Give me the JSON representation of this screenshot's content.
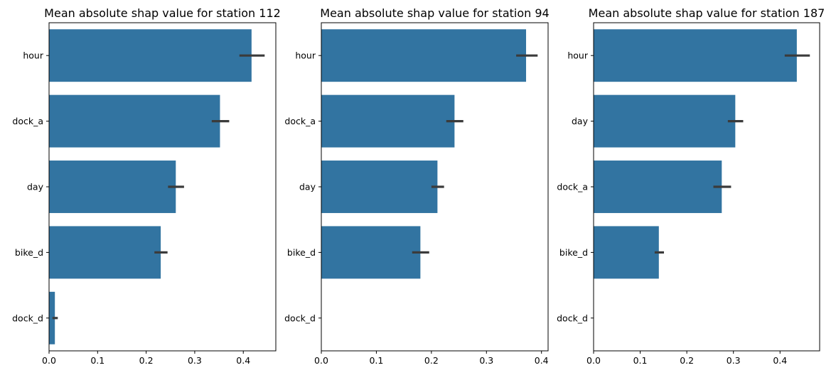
{
  "figure": {
    "background": "#ffffff",
    "bar_color": "#3274a1",
    "error_color": "#3b3b3b"
  },
  "chart_data": [
    {
      "type": "bar",
      "orientation": "horizontal",
      "title": "Mean absolute shap value for station 112",
      "categories": [
        "hour",
        "dock_a",
        "day",
        "bike_d",
        "dock_d"
      ],
      "values": [
        0.417,
        0.352,
        0.261,
        0.23,
        0.012
      ],
      "error_low": [
        0.392,
        0.335,
        0.245,
        0.217,
        0.007
      ],
      "error_high": [
        0.444,
        0.371,
        0.278,
        0.244,
        0.018
      ],
      "xlim": [
        0,
        0.467
      ],
      "xticks": [
        0.0,
        0.1,
        0.2,
        0.3,
        0.4
      ],
      "xtick_labels": [
        "0.0",
        "0.1",
        "0.2",
        "0.3",
        "0.4"
      ],
      "grid": false
    },
    {
      "type": "bar",
      "orientation": "horizontal",
      "title": "Mean absolute shap value for station 94",
      "categories": [
        "hour",
        "dock_a",
        "day",
        "bike_d",
        "dock_d"
      ],
      "values": [
        0.372,
        0.242,
        0.211,
        0.18,
        0.0
      ],
      "error_low": [
        0.354,
        0.227,
        0.2,
        0.165,
        0.0
      ],
      "error_high": [
        0.393,
        0.258,
        0.223,
        0.196,
        0.0
      ],
      "xlim": [
        0,
        0.412
      ],
      "xticks": [
        0.0,
        0.1,
        0.2,
        0.3,
        0.4
      ],
      "xtick_labels": [
        "0.0",
        "0.1",
        "0.2",
        "0.3",
        "0.4"
      ],
      "grid": false
    },
    {
      "type": "bar",
      "orientation": "horizontal",
      "title": "Mean absolute shap value for station 187",
      "categories": [
        "hour",
        "day",
        "dock_a",
        "bike_d",
        "dock_d"
      ],
      "values": [
        0.436,
        0.304,
        0.275,
        0.14,
        0.0
      ],
      "error_low": [
        0.41,
        0.288,
        0.257,
        0.131,
        0.0
      ],
      "error_high": [
        0.464,
        0.321,
        0.295,
        0.151,
        0.0
      ],
      "xlim": [
        0,
        0.485
      ],
      "xticks": [
        0.0,
        0.1,
        0.2,
        0.3,
        0.4
      ],
      "xtick_labels": [
        "0.0",
        "0.1",
        "0.2",
        "0.3",
        "0.4"
      ],
      "grid": false
    }
  ]
}
